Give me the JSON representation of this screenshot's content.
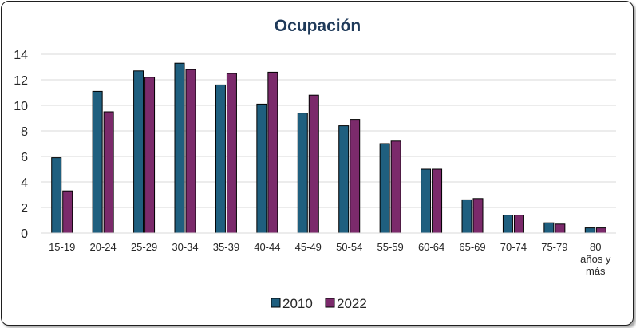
{
  "chart_data": {
    "type": "bar",
    "title": "Ocupación",
    "xlabel": "",
    "ylabel": "",
    "ylim": [
      0,
      14
    ],
    "yticks": [
      0,
      2,
      4,
      6,
      8,
      10,
      12,
      14
    ],
    "grid": true,
    "legend": "bottom",
    "categories": [
      [
        "15-19"
      ],
      [
        "20-24"
      ],
      [
        "25-29"
      ],
      [
        "30-34"
      ],
      [
        "35-39"
      ],
      [
        "40-44"
      ],
      [
        "45-49"
      ],
      [
        "50-54"
      ],
      [
        "55-59"
      ],
      [
        "60-64"
      ],
      [
        "65-69"
      ],
      [
        "70-74"
      ],
      [
        "75-79"
      ],
      [
        "80",
        "años y",
        "más"
      ]
    ],
    "series": [
      {
        "name": "2010",
        "color": "#1f5f7f",
        "values": [
          5.9,
          11.1,
          12.7,
          13.3,
          11.6,
          10.1,
          9.4,
          8.4,
          7.0,
          5.0,
          2.6,
          1.4,
          0.8,
          0.4
        ]
      },
      {
        "name": "2022",
        "color": "#7b2a6b",
        "values": [
          3.3,
          9.5,
          12.2,
          12.8,
          12.5,
          12.6,
          10.8,
          8.9,
          7.2,
          5.0,
          2.7,
          1.4,
          0.7,
          0.4
        ]
      }
    ]
  }
}
